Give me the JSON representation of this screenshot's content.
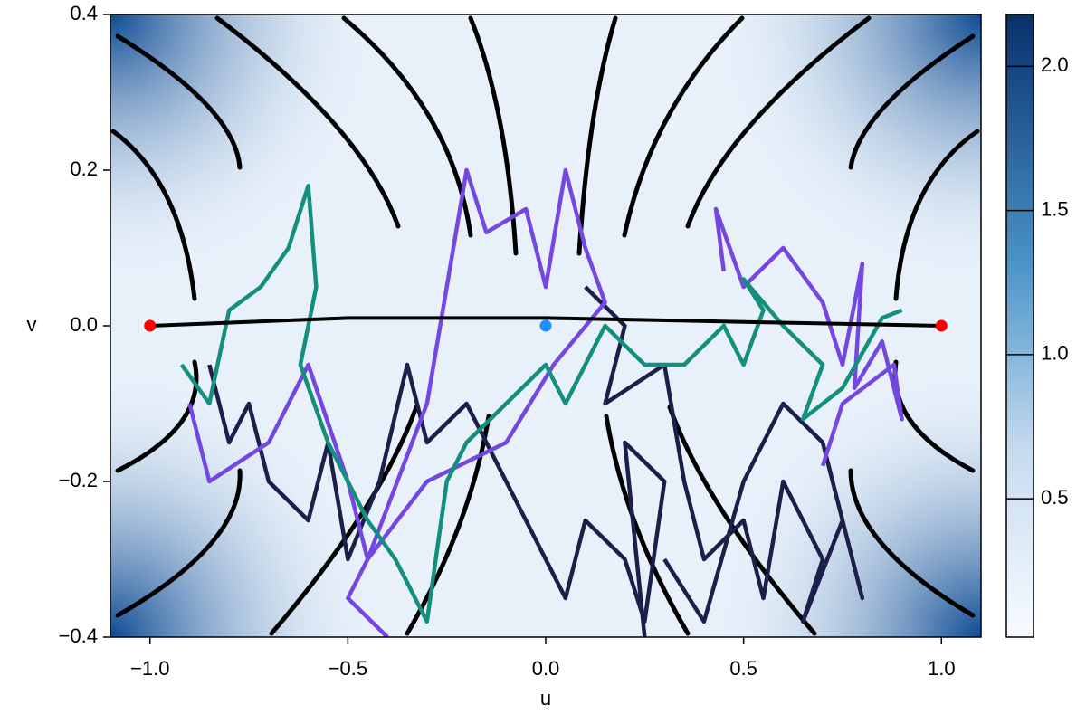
{
  "chart_data": {
    "type": "phase-portrait",
    "xlabel": "u",
    "ylabel": "v",
    "xlim": [
      -1.1,
      1.1
    ],
    "ylim": [
      -0.4,
      0.4
    ],
    "xticks": [
      {
        "value": -1,
        "label": "−1.0"
      },
      {
        "value": -0.5,
        "label": "−0.5"
      },
      {
        "value": 0,
        "label": "0.0"
      },
      0.5,
      {
        "value": 1,
        "label": "1.0"
      }
    ],
    "yticks": [
      {
        "value": -0.4,
        "label": "−0.4"
      },
      {
        "value": -0.2,
        "label": "−0.2"
      },
      {
        "value": 0,
        "label": "0.0"
      },
      0.2,
      0.4
    ],
    "colorbar": {
      "lim": [
        0.02,
        2.18
      ],
      "ticks": [
        0.5,
        {
          "value": 1,
          "label": "1.0"
        },
        1.5,
        {
          "value": 2,
          "label": "2.0"
        }
      ]
    },
    "trajectories": [
      {
        "color": "#1c1f4a",
        "u": [
          -0.85,
          -0.8,
          -0.75,
          -0.7,
          -0.6,
          -0.55,
          -0.5,
          -0.42,
          -0.35,
          -0.3,
          -0.2,
          -0.1,
          0,
          0.05,
          0.1,
          0.2,
          0.25,
          0.3,
          0.2,
          0.25
        ],
        "v": [
          -0.05,
          -0.15,
          -0.1,
          -0.2,
          -0.25,
          -0.15,
          -0.3,
          -0.2,
          -0.05,
          -0.15,
          -0.1,
          -0.2,
          -0.3,
          -0.35,
          -0.25,
          -0.3,
          -0.38,
          -0.2,
          -0.15,
          -0.4
        ]
      },
      {
        "color": "#1c1f4a",
        "u": [
          0.1,
          0.2,
          0.15,
          0.3,
          0.35,
          0.4,
          0.5,
          0.55,
          0.6,
          0.7,
          0.65,
          0.75,
          0.8,
          0.7,
          0.6,
          0.5,
          0.4,
          0.3
        ],
        "v": [
          0.05,
          0,
          -0.1,
          -0.05,
          -0.2,
          -0.3,
          -0.25,
          -0.35,
          -0.2,
          -0.3,
          -0.38,
          -0.25,
          -0.35,
          -0.15,
          -0.1,
          -0.2,
          -0.38,
          -0.3
        ]
      },
      {
        "color": "#7447e0",
        "u": [
          -0.9,
          -0.85,
          -0.7,
          -0.6,
          -0.5,
          -0.45,
          -0.3,
          -0.25,
          -0.2,
          -0.15,
          -0.05,
          0,
          0.05,
          0.1,
          0.15,
          0.02,
          -0.1,
          -0.3,
          -0.45,
          -0.5,
          -0.4
        ],
        "v": [
          -0.1,
          -0.2,
          -0.15,
          -0.05,
          -0.2,
          -0.3,
          -0.1,
          0.05,
          0.2,
          0.12,
          0.15,
          0.05,
          0.2,
          0.1,
          0.03,
          -0.05,
          -0.15,
          -0.2,
          -0.3,
          -0.35,
          -0.4
        ]
      },
      {
        "color": "#7447e0",
        "u": [
          0.45,
          0.43,
          0.5,
          0.6,
          0.7,
          0.75,
          0.8,
          0.78,
          0.85,
          0.9,
          0.88,
          0.75,
          0.7
        ],
        "v": [
          0.07,
          0.15,
          0.05,
          0.1,
          0.03,
          -0.05,
          0.08,
          -0.08,
          -0.02,
          -0.12,
          -0.05,
          -0.1,
          -0.18
        ]
      },
      {
        "color": "#148f7e",
        "u": [
          -0.92,
          -0.85,
          -0.8,
          -0.72,
          -0.65,
          -0.6,
          -0.58,
          -0.62,
          -0.55,
          -0.5,
          -0.45,
          -0.38,
          -0.3,
          -0.25,
          -0.2,
          -0.1,
          0,
          0.05,
          0.15,
          0.25,
          0.35,
          0.45,
          0.5,
          0.55,
          0.5,
          0.6,
          0.7,
          0.65,
          0.75,
          0.85,
          0.9
        ],
        "v": [
          -0.05,
          -0.1,
          0.02,
          0.05,
          0.1,
          0.18,
          0.05,
          -0.05,
          -0.15,
          -0.2,
          -0.25,
          -0.3,
          -0.38,
          -0.2,
          -0.15,
          -0.1,
          -0.05,
          -0.1,
          0,
          -0.05,
          -0.05,
          0,
          -0.05,
          0.02,
          0.06,
          0,
          -0.05,
          -0.12,
          -0.08,
          0.01,
          0.02
        ]
      }
    ],
    "connection": {
      "color": "#000000",
      "u": [
        -1,
        -0.5,
        0,
        0.5,
        1
      ],
      "v": [
        0,
        0.01,
        0.01,
        0.005,
        0
      ]
    },
    "points": [
      {
        "u": -1,
        "v": 0,
        "color": "#ff0000"
      },
      {
        "u": 1,
        "v": 0,
        "color": "#ff0000"
      },
      {
        "u": 0,
        "v": 0,
        "color": "#1e90ff"
      }
    ]
  }
}
